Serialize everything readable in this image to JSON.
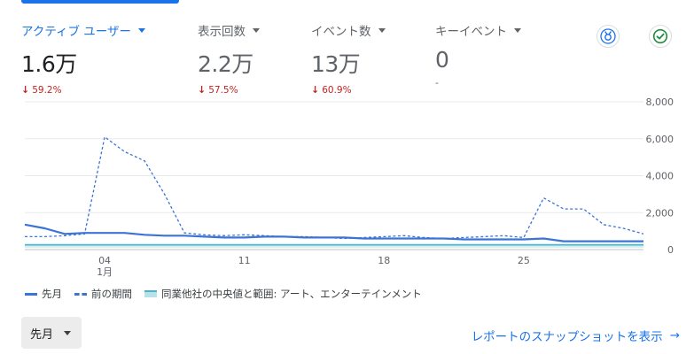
{
  "metrics": [
    {
      "label": "アクティブ ユーザー",
      "value": "1.6万",
      "delta": "59.2%",
      "active": true
    },
    {
      "label": "表示回数",
      "value": "2.2万",
      "delta": "57.5%",
      "active": false
    },
    {
      "label": "イベント数",
      "value": "13万",
      "delta": "60.9%",
      "active": false
    },
    {
      "label": "キーイベント",
      "value": "0",
      "delta": "-",
      "active": false
    }
  ],
  "icons": {
    "insights": "insights-badge-icon",
    "verified": "check-circle-icon"
  },
  "colors": {
    "accent": "#1a73e8",
    "decrease": "#c5221f",
    "current_series": "#3c73d6",
    "benchmark_band": "#b6e3ea"
  },
  "chart_data": {
    "type": "line",
    "x_ticks": [
      {
        "day": 4,
        "label": "04",
        "sublabel": "1月"
      },
      {
        "day": 11,
        "label": "11"
      },
      {
        "day": 18,
        "label": "18"
      },
      {
        "day": 25,
        "label": "25"
      }
    ],
    "ylim": [
      0,
      8000
    ],
    "y_ticks": [
      "8,000",
      "6,000",
      "4,000",
      "2,000",
      "0"
    ],
    "grid": true,
    "series": [
      {
        "name": "先月",
        "style": "solid",
        "x": [
          0,
          1,
          2,
          3,
          4,
          5,
          6,
          7,
          8,
          9,
          10,
          11,
          12,
          13,
          14,
          15,
          16,
          17,
          18,
          19,
          20,
          21,
          22,
          23,
          24,
          25,
          26,
          27,
          28,
          29,
          30,
          31
        ],
        "values": [
          1350,
          1150,
          850,
          900,
          900,
          900,
          800,
          750,
          750,
          700,
          650,
          650,
          700,
          700,
          650,
          650,
          650,
          600,
          600,
          600,
          600,
          600,
          550,
          550,
          550,
          550,
          600,
          450,
          450,
          450,
          450,
          450
        ]
      },
      {
        "name": "前の期間",
        "style": "dashed",
        "x": [
          0,
          1,
          2,
          3,
          4,
          5,
          6,
          7,
          8,
          9,
          10,
          11,
          12,
          13,
          14,
          15,
          16,
          17,
          18,
          19,
          20,
          21,
          22,
          23,
          24,
          25,
          26,
          27,
          28,
          29,
          30,
          31
        ],
        "values": [
          700,
          700,
          750,
          850,
          6100,
          5300,
          4800,
          3000,
          900,
          800,
          750,
          800,
          750,
          700,
          700,
          650,
          600,
          650,
          700,
          750,
          650,
          600,
          650,
          700,
          750,
          650,
          2800,
          2200,
          2200,
          1350,
          1150,
          850
        ]
      },
      {
        "name": "同業他社の中央値と範囲: アート、エンターテインメント",
        "style": "band",
        "x": [
          0,
          31
        ],
        "values": [
          250,
          250
        ],
        "band_low": [
          100,
          100
        ],
        "band_high": [
          350,
          350
        ]
      }
    ]
  },
  "period_select": {
    "value": "先月"
  },
  "report_link": {
    "label": "レポートのスナップショットを表示",
    "arrow": "→"
  }
}
